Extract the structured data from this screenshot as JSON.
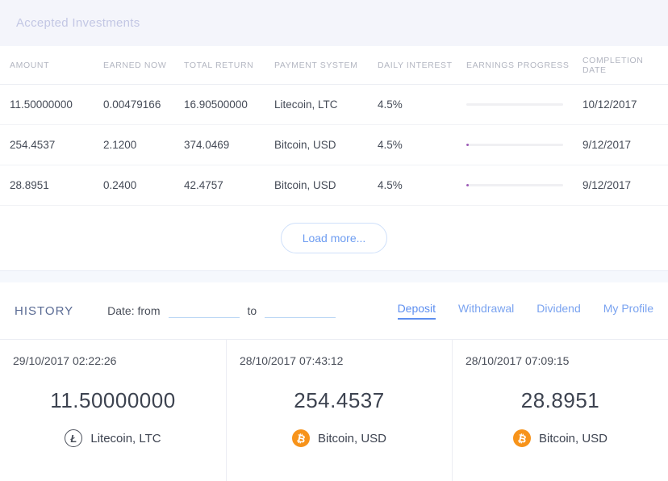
{
  "header": {
    "title": "Accepted Investments"
  },
  "table": {
    "columns": {
      "amount": "AMOUNT",
      "earned_now": "EARNED NOW",
      "total_return": "TOTAL RETURN",
      "payment_system": "PAYMENT SYSTEM",
      "daily_interest": "DAILY INTEREST",
      "earnings_progress": "EARNINGS PROGRESS",
      "completion_date": "COMPLETION DATE"
    },
    "rows": [
      {
        "amount": "11.50000000",
        "earned_now": "0.00479166",
        "total_return": "16.90500000",
        "payment_system": "Litecoin, LTC",
        "daily_interest": "4.5%",
        "progress_percent": 0,
        "completion_date": "10/12/2017"
      },
      {
        "amount": "254.4537",
        "earned_now": "2.1200",
        "total_return": "374.0469",
        "payment_system": "Bitcoin, USD",
        "daily_interest": "4.5%",
        "progress_percent": 2.5,
        "completion_date": "9/12/2017"
      },
      {
        "amount": "28.8951",
        "earned_now": "0.2400",
        "total_return": "42.4757",
        "payment_system": "Bitcoin, USD",
        "daily_interest": "4.5%",
        "progress_percent": 2.5,
        "completion_date": "9/12/2017"
      }
    ],
    "load_more_label": "Load more..."
  },
  "history": {
    "title": "HISTORY",
    "date_from_label": "Date: from",
    "date_to_label": "to",
    "date_from_value": "",
    "date_to_value": "",
    "tabs": [
      {
        "label": "Deposit",
        "active": true
      },
      {
        "label": "Withdrawal",
        "active": false
      },
      {
        "label": "Dividend",
        "active": false
      },
      {
        "label": "My Profile",
        "active": false
      }
    ],
    "cards": [
      {
        "datetime": "29/10/2017 02:22:26",
        "amount": "11.50000000",
        "currency": "Litecoin, LTC",
        "coin": "litecoin",
        "coin_glyph": "Ł"
      },
      {
        "datetime": "28/10/2017 07:43:12",
        "amount": "254.4537",
        "currency": "Bitcoin, USD",
        "coin": "bitcoin",
        "coin_glyph": "₿"
      },
      {
        "datetime": "28/10/2017 07:09:15",
        "amount": "28.8951",
        "currency": "Bitcoin, USD",
        "coin": "bitcoin",
        "coin_glyph": "₿"
      }
    ]
  },
  "colors": {
    "accent_blue": "#6d9cf1",
    "active_tab_blue": "#5e8ff0",
    "bitcoin_orange": "#f7931a",
    "litecoin_gray": "#4a4f5a",
    "progress_purple": "#9c59b6",
    "band_lavender": "#f4f5fb"
  }
}
